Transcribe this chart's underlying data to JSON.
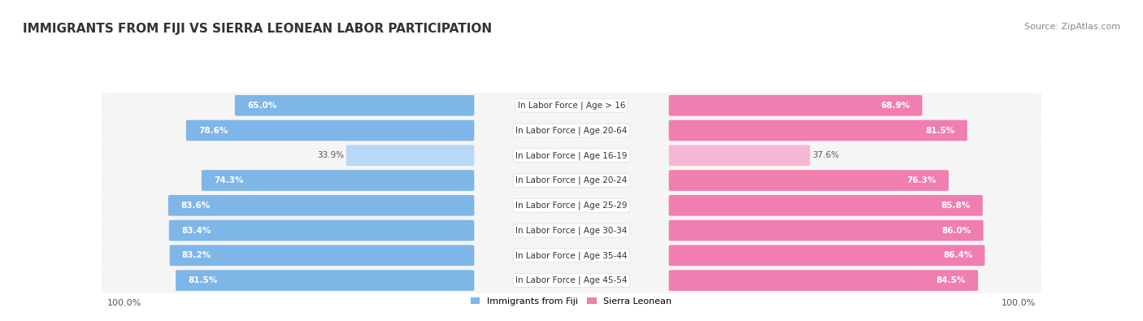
{
  "title": "IMMIGRANTS FROM FIJI VS SIERRA LEONEAN LABOR PARTICIPATION",
  "source": "Source: ZipAtlas.com",
  "categories": [
    "In Labor Force | Age > 16",
    "In Labor Force | Age 20-64",
    "In Labor Force | Age 16-19",
    "In Labor Force | Age 20-24",
    "In Labor Force | Age 25-29",
    "In Labor Force | Age 30-34",
    "In Labor Force | Age 35-44",
    "In Labor Force | Age 45-54"
  ],
  "fiji_values": [
    65.0,
    78.6,
    33.9,
    74.3,
    83.6,
    83.4,
    83.2,
    81.5
  ],
  "sierra_values": [
    68.9,
    81.5,
    37.6,
    76.3,
    85.8,
    86.0,
    86.4,
    84.5
  ],
  "fiji_color": "#7EB6E8",
  "fiji_color_light": "#B8D8F5",
  "sierra_color": "#F07EB0",
  "sierra_color_light": "#F5B8D4",
  "bar_bg": "#F0F0F0",
  "label_color_dark": "#333333",
  "label_color_white": "#FFFFFF",
  "max_value": 100.0,
  "legend_fiji": "Immigrants from Fiji",
  "legend_sierra": "Sierra Leonean",
  "background_color": "#FFFFFF",
  "row_bg_color": "#F5F5F5"
}
